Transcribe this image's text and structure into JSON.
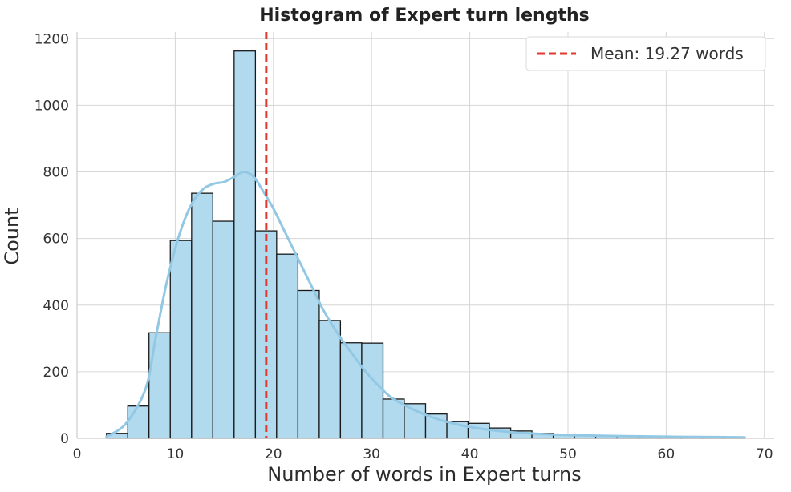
{
  "chart_data": {
    "type": "bar",
    "subtype": "histogram",
    "title": "Histogram of Expert turn lengths",
    "xlabel": "Number of words in Expert turns",
    "ylabel": "Count",
    "xlim": [
      0,
      71
    ],
    "ylim": [
      0,
      1220
    ],
    "xticks": [
      0,
      10,
      20,
      30,
      40,
      50,
      60,
      70
    ],
    "yticks": [
      0,
      200,
      400,
      600,
      800,
      1000,
      1200
    ],
    "grid": true,
    "legend_position": "top-right",
    "bins": [
      {
        "x0": 3.0,
        "x1": 5.17,
        "count": 15
      },
      {
        "x0": 5.17,
        "x1": 7.33,
        "count": 97
      },
      {
        "x0": 7.33,
        "x1": 9.5,
        "count": 317
      },
      {
        "x0": 9.5,
        "x1": 11.67,
        "count": 594
      },
      {
        "x0": 11.67,
        "x1": 13.83,
        "count": 736
      },
      {
        "x0": 13.83,
        "x1": 16.0,
        "count": 652
      },
      {
        "x0": 16.0,
        "x1": 18.17,
        "count": 1163
      },
      {
        "x0": 18.17,
        "x1": 20.33,
        "count": 623
      },
      {
        "x0": 20.33,
        "x1": 22.5,
        "count": 553
      },
      {
        "x0": 22.5,
        "x1": 24.67,
        "count": 444
      },
      {
        "x0": 24.67,
        "x1": 26.83,
        "count": 354
      },
      {
        "x0": 26.83,
        "x1": 29.0,
        "count": 287
      },
      {
        "x0": 29.0,
        "x1": 31.17,
        "count": 286
      },
      {
        "x0": 31.17,
        "x1": 33.33,
        "count": 118
      },
      {
        "x0": 33.33,
        "x1": 35.5,
        "count": 104
      },
      {
        "x0": 35.5,
        "x1": 37.67,
        "count": 73
      },
      {
        "x0": 37.67,
        "x1": 39.83,
        "count": 50
      },
      {
        "x0": 39.83,
        "x1": 42.0,
        "count": 45
      },
      {
        "x0": 42.0,
        "x1": 44.17,
        "count": 31
      },
      {
        "x0": 44.17,
        "x1": 46.33,
        "count": 22
      },
      {
        "x0": 46.33,
        "x1": 48.5,
        "count": 15
      },
      {
        "x0": 48.5,
        "x1": 50.67,
        "count": 11
      },
      {
        "x0": 50.67,
        "x1": 52.83,
        "count": 8
      },
      {
        "x0": 52.83,
        "x1": 55.0,
        "count": 7
      },
      {
        "x0": 55.0,
        "x1": 57.17,
        "count": 6
      },
      {
        "x0": 57.17,
        "x1": 59.33,
        "count": 4
      },
      {
        "x0": 59.33,
        "x1": 61.5,
        "count": 3
      },
      {
        "x0": 61.5,
        "x1": 63.67,
        "count": 2
      },
      {
        "x0": 63.67,
        "x1": 65.83,
        "count": 2
      },
      {
        "x0": 65.83,
        "x1": 68.0,
        "count": 3
      }
    ],
    "kde": {
      "x": [
        3,
        5,
        7,
        8,
        9,
        10,
        11,
        12,
        13,
        14,
        15,
        16,
        17,
        18,
        19,
        20,
        21,
        22,
        23,
        24,
        25,
        26,
        27,
        28,
        29,
        30,
        31,
        32,
        34,
        36,
        38,
        40,
        43,
        46,
        50,
        55,
        60,
        65,
        68
      ],
      "y": [
        5,
        45,
        150,
        300,
        450,
        570,
        660,
        720,
        752,
        765,
        770,
        785,
        800,
        785,
        740,
        690,
        630,
        570,
        510,
        450,
        390,
        340,
        295,
        255,
        215,
        180,
        150,
        123,
        90,
        65,
        47,
        34,
        22,
        15,
        10,
        7,
        5,
        4,
        3
      ]
    },
    "mean": {
      "value": 19.27,
      "label": "Mean: 19.27 words",
      "color": "#e03a2f"
    },
    "colors": {
      "bar_fill": "#b1daee",
      "bar_edge": "#1a1a1a",
      "kde_line": "#93c8e4"
    }
  }
}
